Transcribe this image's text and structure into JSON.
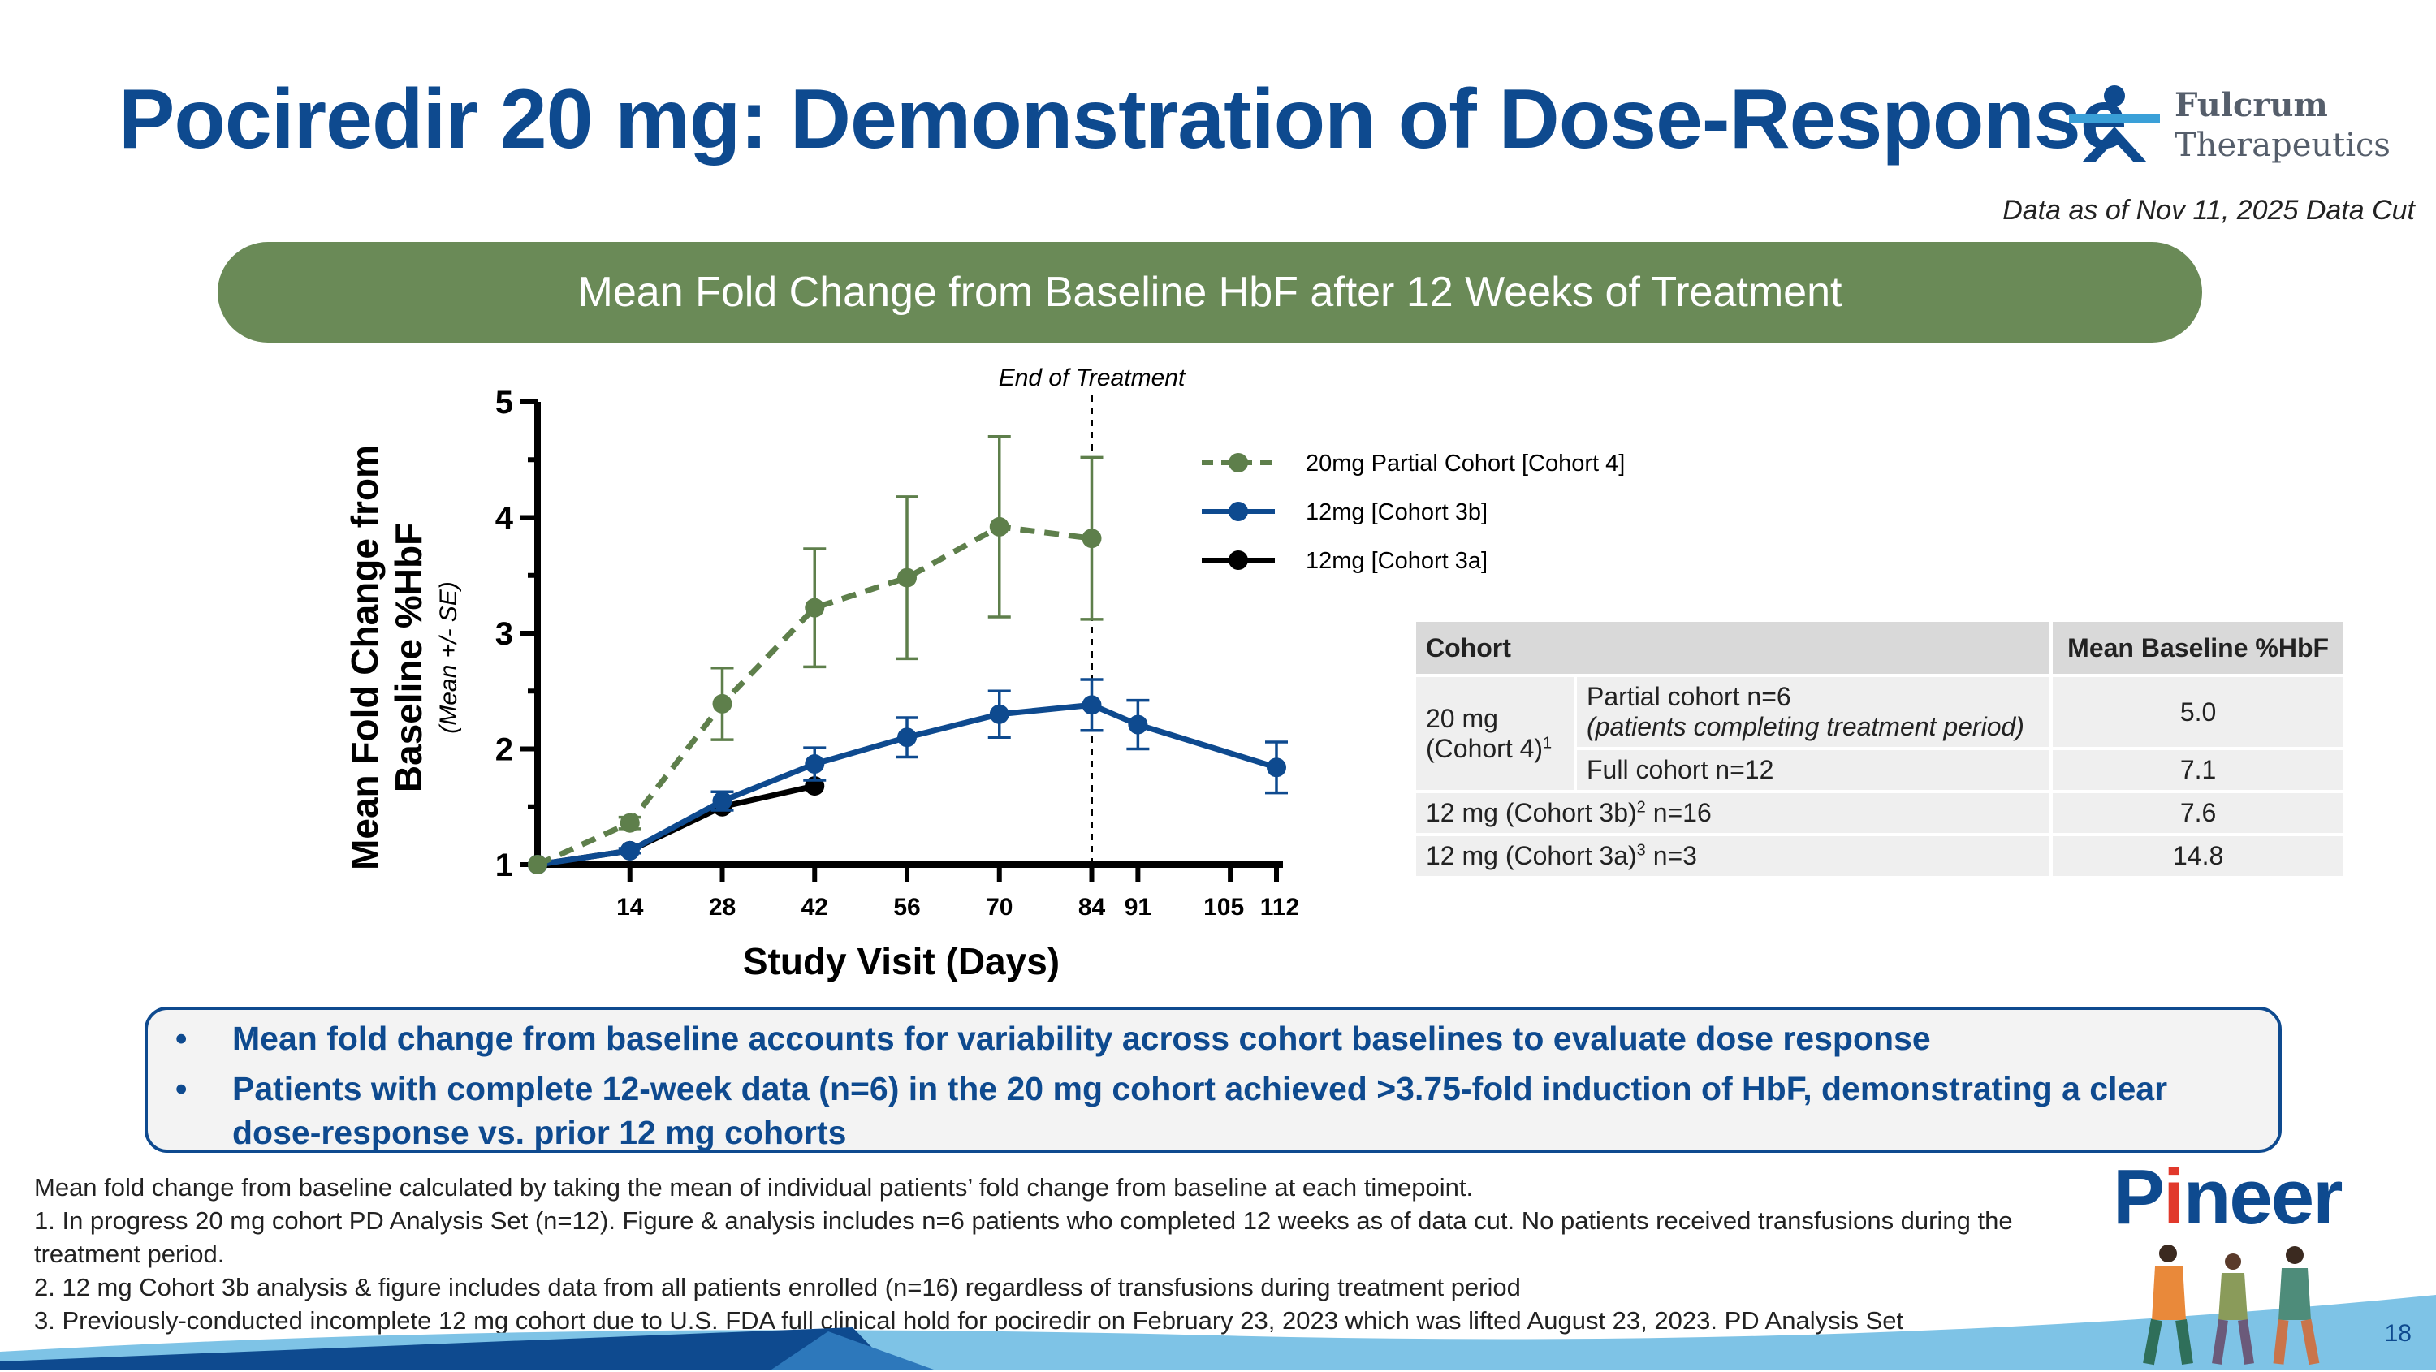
{
  "title": "Pociredir 20 mg: Demonstration of Dose-Response",
  "logo": {
    "line1": "Fulcrum",
    "line2": "Therapeutics"
  },
  "data_cut": "Data as of Nov 11, 2025 Data Cut",
  "banner": "Mean Fold Change from Baseline HbF after 12 Weeks of Treatment",
  "colors": {
    "title_blue": "#0e4a8f",
    "banner_green": "#6a8a57",
    "series_green": "#5e7f4b",
    "series_blue": "#0e4a8f",
    "series_black": "#000000"
  },
  "chart_data": {
    "type": "line",
    "ylabel_main": "Mean Fold Change from Baseline %HbF",
    "ylabel_line1": "Mean Fold Change from",
    "ylabel_line2": "Baseline %HbF",
    "ylabel_sub": "(Mean +/- SE)",
    "xlabel": "Study Visit (Days)",
    "xticks": [
      14,
      28,
      42,
      56,
      70,
      84,
      91,
      105,
      112
    ],
    "xtick_labels": [
      "14",
      "28",
      "42",
      "56",
      "70",
      "84",
      "91",
      "105",
      "112"
    ],
    "yticks": [
      1,
      2,
      3,
      4,
      5
    ],
    "ytick_labels": [
      "1",
      "2",
      "3",
      "4",
      "5"
    ],
    "xlim": [
      0,
      112
    ],
    "ylim": [
      1,
      5
    ],
    "annotation": {
      "text": "End of Treatment",
      "x": 84
    },
    "series": [
      {
        "name": "20mg Partial Cohort [Cohort 4]",
        "style": "dashed",
        "color": "#5e7f4b",
        "x": [
          0,
          14,
          28,
          42,
          56,
          70,
          84
        ],
        "y": [
          1.0,
          1.36,
          2.39,
          3.22,
          3.48,
          3.92,
          3.82
        ],
        "se": [
          0,
          0.05,
          0.31,
          0.51,
          0.7,
          0.78,
          0.7
        ]
      },
      {
        "name": "12mg [Cohort 3b]",
        "style": "solid",
        "color": "#0e4a8f",
        "x": [
          0,
          14,
          28,
          42,
          56,
          70,
          84,
          91,
          112
        ],
        "y": [
          1.0,
          1.12,
          1.55,
          1.87,
          2.1,
          2.3,
          2.38,
          2.21,
          1.84
        ],
        "se": [
          0,
          0.02,
          0.08,
          0.14,
          0.17,
          0.2,
          0.22,
          0.21,
          0.22
        ]
      },
      {
        "name": "12mg [Cohort 3a]",
        "style": "solid",
        "color": "#000000",
        "x": [
          0,
          14,
          28,
          42
        ],
        "y": [
          1.0,
          1.12,
          1.5,
          1.68
        ],
        "se": [
          0,
          0,
          0,
          0
        ]
      }
    ]
  },
  "table": {
    "headers": [
      "Cohort",
      "Mean Baseline %HbF"
    ],
    "group_label_line1": "20 mg",
    "group_label_line2": "(Cohort 4)",
    "group_sup": "1",
    "rows": [
      {
        "sub_line1": "Partial cohort n=6",
        "sub_line2": "(patients completing treatment period)",
        "value": "5.0"
      },
      {
        "sub_line1": "Full cohort n=12",
        "value": "7.1"
      },
      {
        "label": "12 mg (Cohort 3b)",
        "sup": "2",
        "suffix": " n=16",
        "value": "7.6"
      },
      {
        "label": "12 mg (Cohort 3a)",
        "sup": "3",
        "suffix": " n=3",
        "value": "14.8"
      }
    ]
  },
  "bullets": [
    "Mean fold change from baseline accounts for variability across cohort baselines to evaluate dose response",
    "Patients with complete 12-week data (n=6) in the 20 mg cohort achieved >3.75-fold induction of HbF, demonstrating a clear dose-response vs. prior 12 mg cohorts"
  ],
  "bullet_marker": "•",
  "footnotes": [
    "Mean fold change from baseline calculated by taking the mean of individual patients’ fold change from baseline at each timepoint.",
    "1. In progress 20 mg cohort PD Analysis Set (n=12). Figure & analysis includes n=6 patients who completed 12 weeks as of data cut. No patients received transfusions during the treatment period.",
    "2. 12 mg Cohort 3b analysis & figure includes data from all patients enrolled (n=16) regardless of transfusions during treatment period",
    "3. Previously-conducted incomplete 12 mg cohort due to U.S. FDA full clinical hold for pociredir on February 23, 2023 which was lifted August 23, 2023. PD Analysis Set"
  ],
  "pioneer": {
    "p": "P",
    "i": "i",
    "rest": "neer"
  },
  "page_number": "18"
}
